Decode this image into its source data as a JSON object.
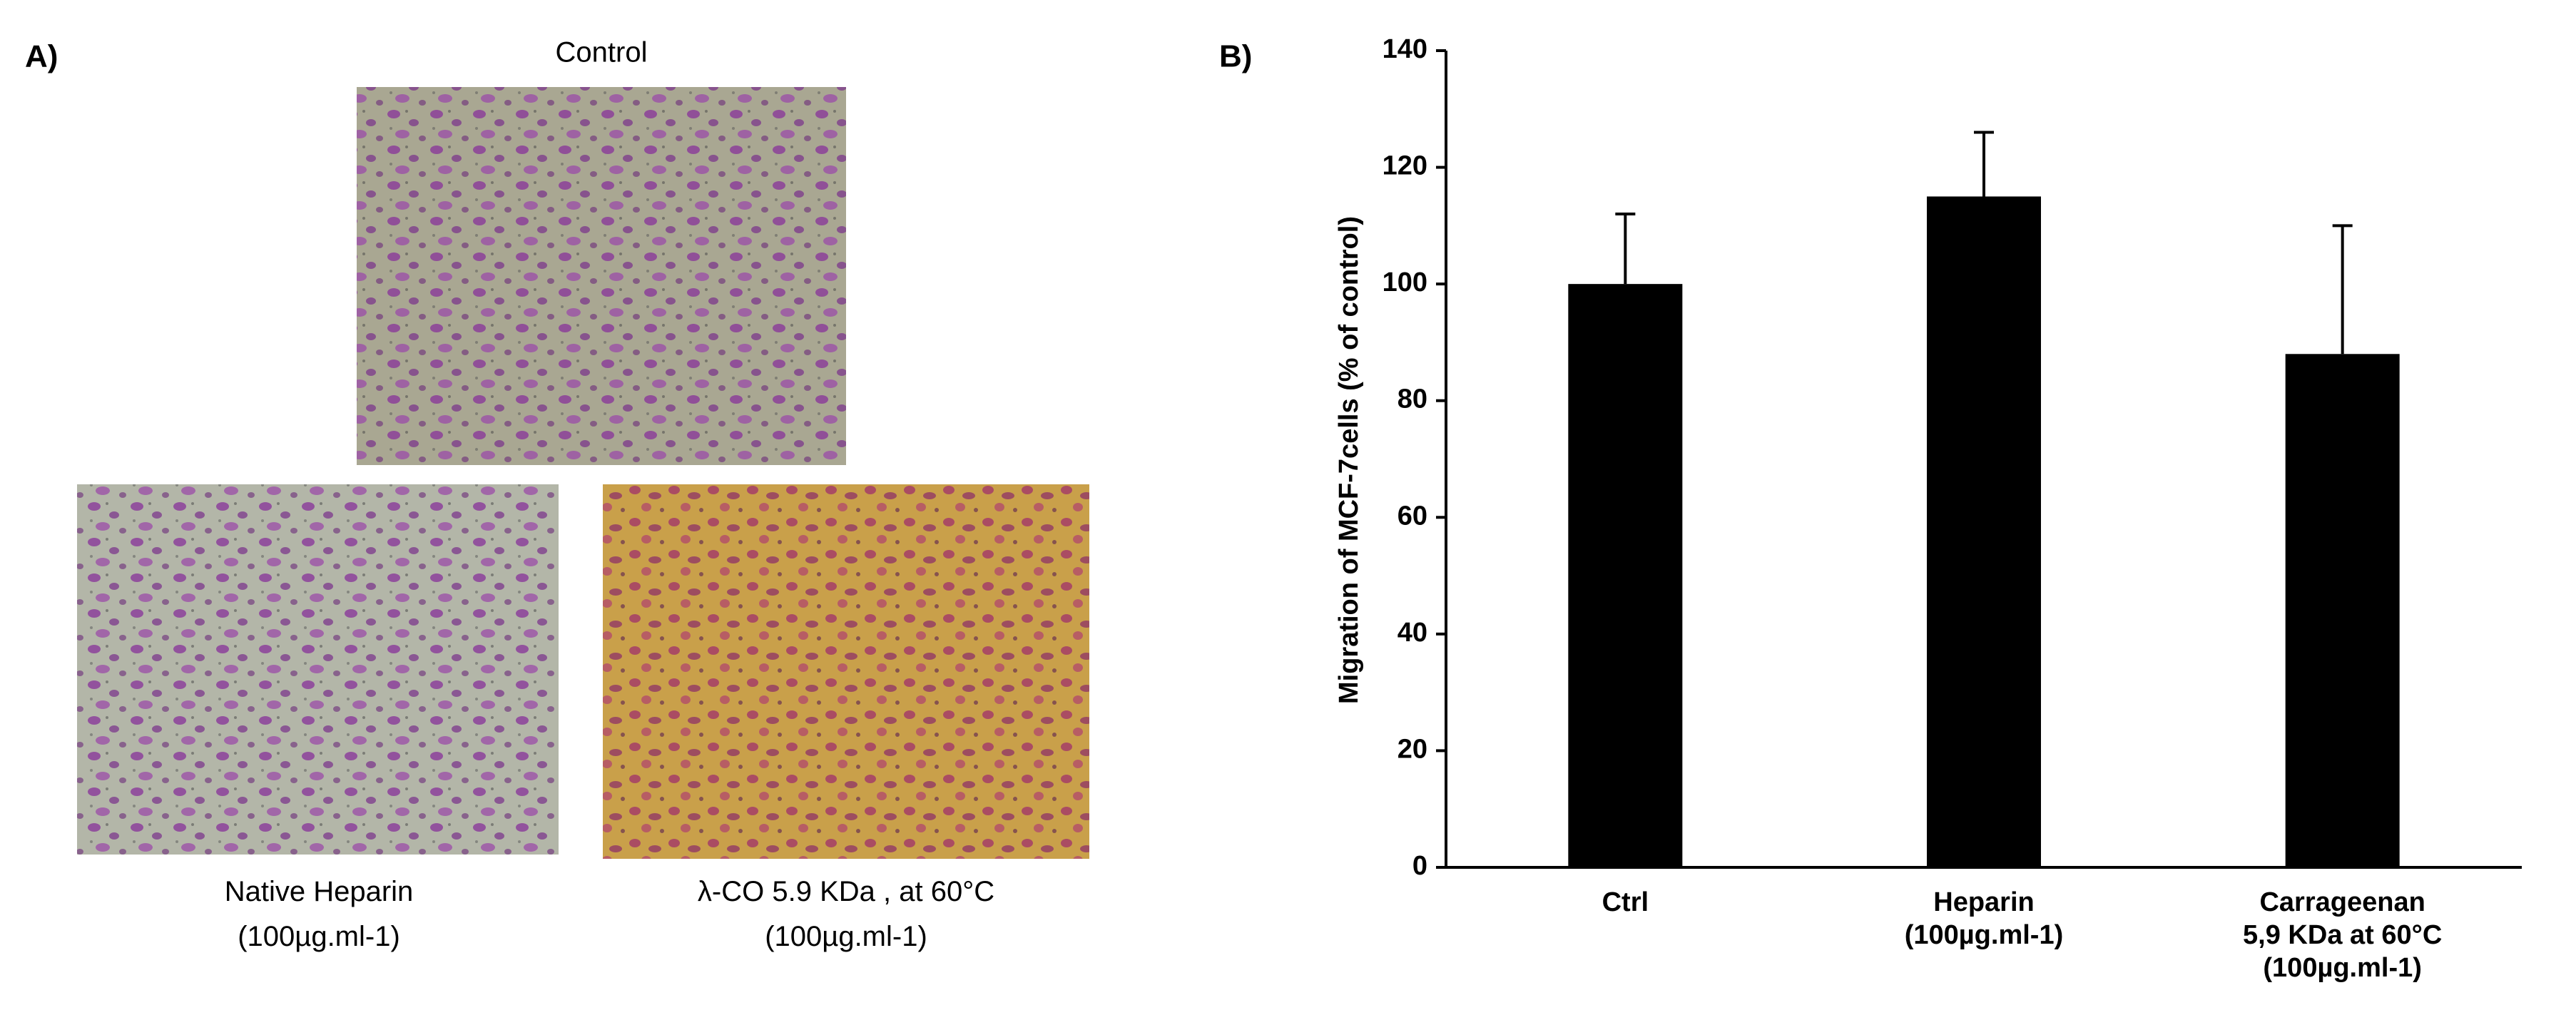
{
  "panel_a": {
    "label": "A)",
    "control": "Control",
    "native_heparin": {
      "title": "Native Heparin",
      "dose": "(100µg.ml-1)"
    },
    "lambda_co": {
      "title": "λ-CO 5.9 KDa , at 60°C",
      "dose": "(100µg.ml-1)"
    }
  },
  "chart_data": {
    "type": "bar",
    "panel_label": "B)",
    "y_label": "Migration of MCF-7cells (% of control)",
    "categories": [
      "Ctrl",
      "Heparin\n(100µg.ml-1)",
      "Carrageenan\n5,9 KDa at 60°C\n(100µg.ml-1)"
    ],
    "values": [
      100,
      115,
      88
    ],
    "errors": [
      12,
      11,
      22
    ],
    "color": "#000000",
    "ylim": [
      0,
      140
    ],
    "yticks": [
      0,
      20,
      40,
      60,
      80,
      100,
      120,
      140
    ]
  }
}
